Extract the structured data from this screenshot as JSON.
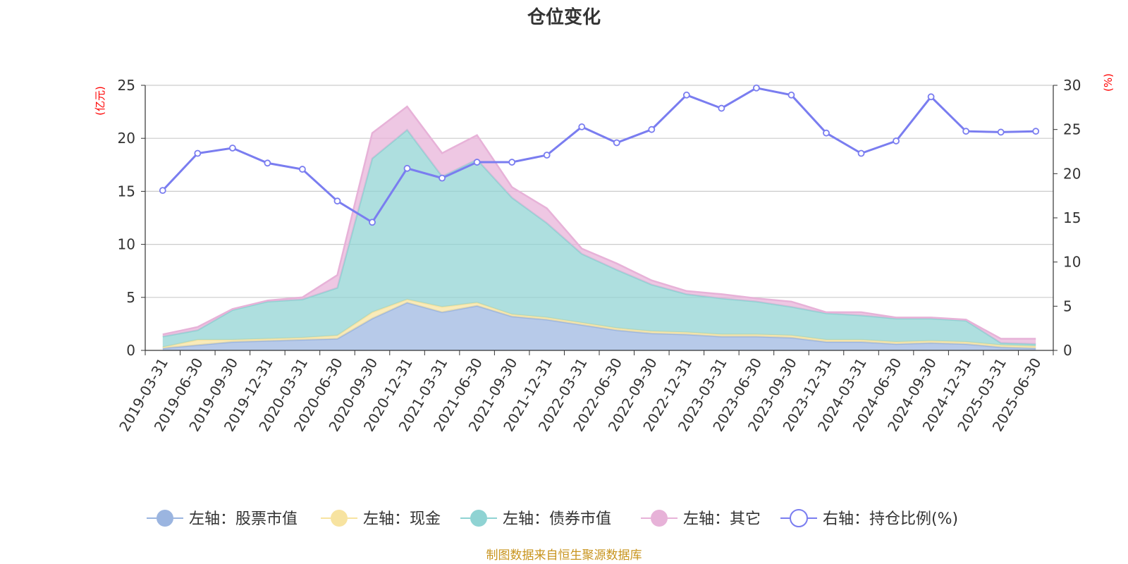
{
  "chart_data": {
    "type": "area",
    "title": "仓位变化",
    "left_axis": {
      "unit": "(亿元)",
      "ylim": [
        0,
        25
      ],
      "ticks": [
        0,
        5,
        10,
        15,
        20,
        25
      ]
    },
    "right_axis": {
      "unit": "(%)",
      "ylim": [
        0,
        30
      ],
      "ticks": [
        0,
        5,
        10,
        15,
        20,
        25,
        30
      ]
    },
    "categories": [
      "2019-03-31",
      "2019-06-30",
      "2019-09-30",
      "2019-12-31",
      "2020-03-31",
      "2020-06-30",
      "2020-09-30",
      "2020-12-31",
      "2021-03-31",
      "2021-06-30",
      "2021-09-30",
      "2021-12-31",
      "2022-03-31",
      "2022-06-30",
      "2022-09-30",
      "2022-12-31",
      "2023-03-31",
      "2023-06-30",
      "2023-09-30",
      "2023-12-31",
      "2024-03-31",
      "2024-06-30",
      "2024-09-30",
      "2024-12-31",
      "2025-03-31",
      "2025-06-30"
    ],
    "series": [
      {
        "name": "左轴：股票市值",
        "axis": "left",
        "kind": "stacked-area",
        "color": "#9bb5e0",
        "values": [
          0.2,
          0.5,
          0.8,
          0.9,
          1.0,
          1.1,
          3.0,
          4.5,
          3.6,
          4.2,
          3.2,
          2.9,
          2.4,
          1.9,
          1.6,
          1.5,
          1.3,
          1.3,
          1.2,
          0.8,
          0.8,
          0.6,
          0.7,
          0.6,
          0.3,
          0.2
        ]
      },
      {
        "name": "左轴：现金",
        "axis": "left",
        "kind": "stacked-area",
        "color": "#f7e3a0",
        "values": [
          0.1,
          0.5,
          0.2,
          0.2,
          0.2,
          0.3,
          0.6,
          0.3,
          0.5,
          0.3,
          0.2,
          0.2,
          0.2,
          0.2,
          0.2,
          0.2,
          0.2,
          0.2,
          0.2,
          0.2,
          0.2,
          0.2,
          0.2,
          0.2,
          0.2,
          0.2
        ]
      },
      {
        "name": "左轴：债券市值",
        "axis": "left",
        "kind": "stacked-area",
        "color": "#8fd3d3",
        "values": [
          1.0,
          0.9,
          2.8,
          3.5,
          3.6,
          4.5,
          14.5,
          16.0,
          12.3,
          13.5,
          11.0,
          8.9,
          6.5,
          5.5,
          4.4,
          3.6,
          3.4,
          3.1,
          2.7,
          2.5,
          2.3,
          2.2,
          2.1,
          2.0,
          0.2,
          0.2
        ]
      },
      {
        "name": "左轴：其它",
        "axis": "left",
        "kind": "stacked-area",
        "color": "#e7b2d8",
        "values": [
          0.2,
          0.3,
          0.1,
          0.1,
          0.2,
          1.2,
          2.4,
          2.2,
          2.2,
          2.3,
          1.0,
          1.4,
          0.5,
          0.6,
          0.4,
          0.3,
          0.4,
          0.3,
          0.5,
          0.1,
          0.3,
          0.1,
          0.1,
          0.1,
          0.4,
          0.5
        ]
      },
      {
        "name": "右轴：持仓比例(%)",
        "axis": "right",
        "kind": "line",
        "color": "#7a7df0",
        "values": [
          18.1,
          22.3,
          22.9,
          21.2,
          20.5,
          16.9,
          14.5,
          20.6,
          19.5,
          21.3,
          21.3,
          22.1,
          25.3,
          23.5,
          25.0,
          28.9,
          27.4,
          29.7,
          28.9,
          24.6,
          22.3,
          23.7,
          28.7,
          24.8,
          24.7,
          24.8
        ]
      }
    ],
    "legend": {
      "position": "bottom"
    },
    "grid": true,
    "source_note": "制图数据来自恒生聚源数据库"
  }
}
